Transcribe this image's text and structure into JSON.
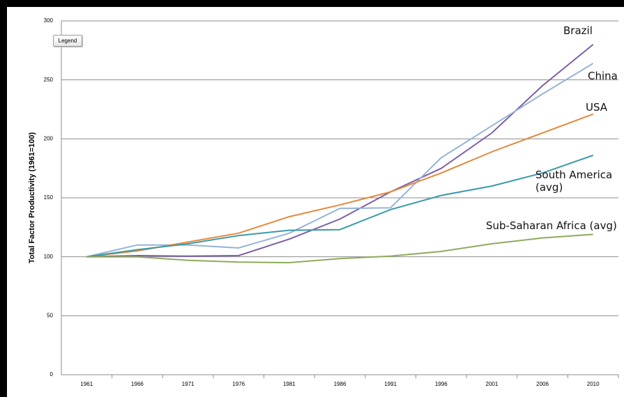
{
  "chart_data": {
    "type": "line",
    "y_axis_label": "Total Factor Productivity (1961=100)",
    "legend_button": "Legend",
    "categories": [
      "1961",
      "1966",
      "1971",
      "1976",
      "1981",
      "1986",
      "1991",
      "1996",
      "2001",
      "2006",
      "2010"
    ],
    "series": [
      {
        "name": "Brazil",
        "color": "#7b5ea7",
        "values": [
          100,
          101,
          100.5,
          101,
          115,
          132,
          155,
          175,
          205,
          245,
          280
        ]
      },
      {
        "name": "China",
        "color": "#95b3d7",
        "values": [
          100,
          110,
          110,
          107.5,
          120,
          141,
          141.5,
          184,
          211,
          238,
          264
        ]
      },
      {
        "name": "USA",
        "color": "#e5883d",
        "values": [
          100,
          105,
          112.5,
          120,
          134,
          144,
          155,
          171,
          189,
          205,
          221
        ]
      },
      {
        "name": "South America (avg)",
        "color": "#3a9aa8",
        "values": [
          100,
          106,
          111,
          118,
          122.5,
          123,
          140,
          152,
          160,
          171,
          186
        ]
      },
      {
        "name": "Sub-Saharan Africa (avg)",
        "color": "#8eaa5c",
        "values": [
          100,
          100,
          97,
          95.5,
          95,
          98.5,
          100.5,
          104.5,
          111,
          116,
          119
        ]
      }
    ],
    "ylim": [
      0,
      300
    ],
    "yticks": [
      0,
      50,
      100,
      150,
      200,
      250,
      300
    ],
    "grid": true
  }
}
